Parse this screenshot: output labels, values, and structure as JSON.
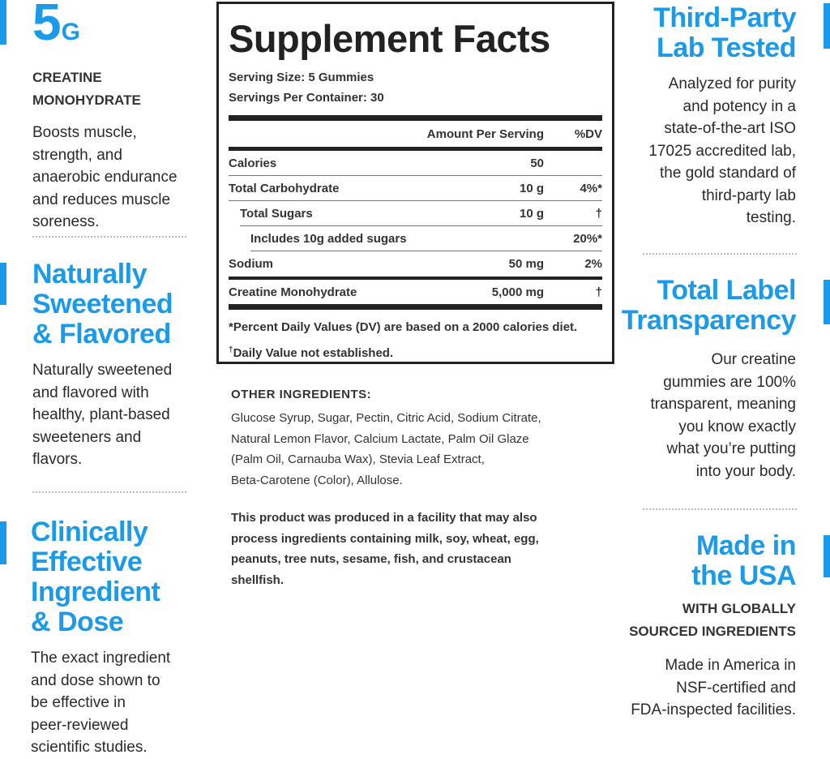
{
  "accent_color": "#1a9ae8",
  "left": [
    {
      "heading_big": "5",
      "heading_unit": "G",
      "subheading": [
        "CREATINE",
        "MONOHYDRATE"
      ],
      "body": [
        "Boosts muscle,",
        "strength, and",
        "anaerobic endurance",
        "and reduces muscle",
        "soreness."
      ]
    },
    {
      "heading": [
        "Naturally",
        "Sweetened",
        "& Flavored"
      ],
      "body": [
        "Naturally sweetened",
        "and flavored with",
        "healthy, plant-based",
        "sweeteners and",
        "flavors."
      ]
    },
    {
      "heading": [
        "Clinically",
        "Effective",
        "Ingredient",
        "& Dose"
      ],
      "body": [
        "The exact ingredient",
        "and dose shown to",
        "be effective in",
        "peer-reviewed",
        "scientific studies."
      ]
    }
  ],
  "right": [
    {
      "heading": [
        "Third-Party",
        "Lab Tested"
      ],
      "body": [
        "Analyzed for purity",
        "and potency in a",
        "state-of-the-art ISO",
        "17025 accredited lab,",
        "the gold standard of",
        "third-party lab",
        "testing."
      ]
    },
    {
      "heading": [
        "Total Label",
        "Transparency"
      ],
      "body": [
        "Our creatine",
        "gummies are 100%",
        "transparent, meaning",
        "you know exactly",
        "what you’re putting",
        "into your body."
      ]
    },
    {
      "heading": [
        "Made in",
        "the USA"
      ],
      "subheading": [
        "WITH GLOBALLY",
        "SOURCED INGREDIENTS"
      ],
      "body": [
        "Made in America in",
        "NSF-certified and",
        "FDA-inspected facilities."
      ]
    }
  ],
  "facts": {
    "title": "Supplement Facts",
    "serving_size": "Serving Size: 5 Gummies",
    "servings_per_container": "Servings Per Container: 30",
    "col_amount": "Amount Per Serving",
    "col_dv": "%DV",
    "rows": [
      {
        "name": "Calories",
        "amount": "50",
        "dv": ""
      },
      {
        "name": "Total Carbohydrate",
        "amount": "10 g",
        "dv": "4%*"
      },
      {
        "name": "Total Sugars",
        "amount": "10 g",
        "dv": "†"
      },
      {
        "name": "Includes 10g added sugars",
        "amount": "",
        "dv": "20%*"
      },
      {
        "name": "Sodium",
        "amount": "50 mg",
        "dv": "2%"
      },
      {
        "name": "Creatine Monohydrate",
        "amount": "5,000 mg",
        "dv": "†"
      }
    ],
    "footnote1": "*Percent Daily Values (DV) are based on a 2000 calories diet.",
    "footnote2_mark": "†",
    "footnote2": "Daily Value not established."
  },
  "other_ingredients": {
    "heading": "OTHER INGREDIENTS:",
    "lines": [
      "Glucose Syrup, Sugar, Pectin, Citric Acid, Sodium Citrate,",
      "Natural Lemon Flavor, Calcium Lactate, Palm Oil Glaze",
      "(Palm Oil, Carnauba Wax), Stevia Leaf Extract,",
      "Beta-Carotene (Color), Allulose."
    ],
    "allergen": [
      "This product was produced in a facility that may also",
      "process ingredients containing milk, soy, wheat, egg,",
      "peanuts, tree nuts, sesame, fish, and crustacean",
      "shellfish."
    ]
  }
}
